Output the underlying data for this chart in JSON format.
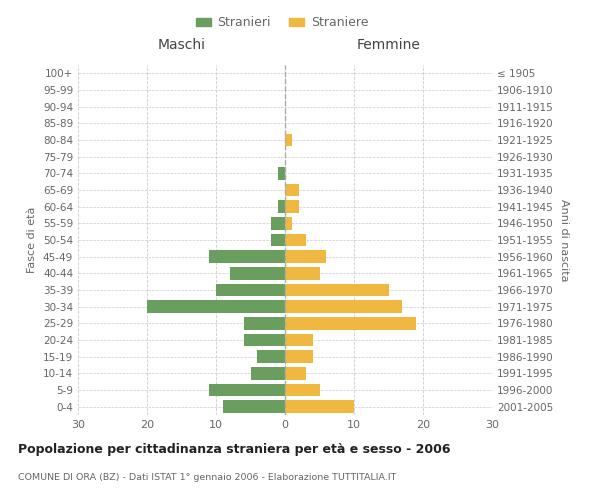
{
  "age_groups": [
    "0-4",
    "5-9",
    "10-14",
    "15-19",
    "20-24",
    "25-29",
    "30-34",
    "35-39",
    "40-44",
    "45-49",
    "50-54",
    "55-59",
    "60-64",
    "65-69",
    "70-74",
    "75-79",
    "80-84",
    "85-89",
    "90-94",
    "95-99",
    "100+"
  ],
  "birth_years": [
    "2001-2005",
    "1996-2000",
    "1991-1995",
    "1986-1990",
    "1981-1985",
    "1976-1980",
    "1971-1975",
    "1966-1970",
    "1961-1965",
    "1956-1960",
    "1951-1955",
    "1946-1950",
    "1941-1945",
    "1936-1940",
    "1931-1935",
    "1926-1930",
    "1921-1925",
    "1916-1920",
    "1911-1915",
    "1906-1910",
    "≤ 1905"
  ],
  "males": [
    9,
    11,
    5,
    4,
    6,
    6,
    20,
    10,
    8,
    11,
    2,
    2,
    1,
    0,
    1,
    0,
    0,
    0,
    0,
    0,
    0
  ],
  "females": [
    10,
    5,
    3,
    4,
    4,
    19,
    17,
    15,
    5,
    6,
    3,
    1,
    2,
    2,
    0,
    0,
    1,
    0,
    0,
    0,
    0
  ],
  "male_color": "#6a9e5e",
  "female_color": "#f0b840",
  "male_label": "Stranieri",
  "female_label": "Straniere",
  "xlim": 30,
  "title": "Popolazione per cittadinanza straniera per età e sesso - 2006",
  "subtitle": "COMUNE DI ORA (BZ) - Dati ISTAT 1° gennaio 2006 - Elaborazione TUTTITALIA.IT",
  "xlabel_left": "Maschi",
  "xlabel_right": "Femmine",
  "ylabel_left": "Fasce di età",
  "ylabel_right": "Anni di nascita",
  "bg_color": "#ffffff",
  "grid_color": "#cccccc",
  "text_color": "#666666"
}
